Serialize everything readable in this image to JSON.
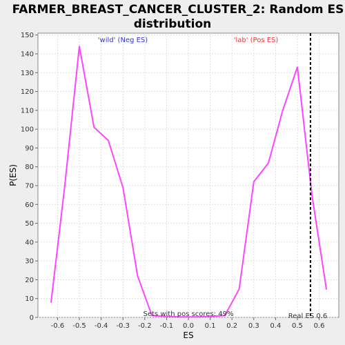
{
  "chart_data": {
    "type": "line",
    "title_line1": "FARMER_BREAST_CANCER_CLUSTER_2: Random ES",
    "title_line2": "distribution",
    "xlabel": "ES",
    "ylabel": "P(ES)",
    "xlim": [
      -0.69,
      0.69
    ],
    "ylim": [
      0,
      151
    ],
    "xticks": [
      "-0.6",
      "-0.5",
      "-0.4",
      "-0.3",
      "-0.2",
      "-0.1",
      "0.0",
      "0.1",
      "0.2",
      "0.3",
      "0.4",
      "0.5",
      "0.6"
    ],
    "yticks": [
      "0",
      "10",
      "20",
      "30",
      "40",
      "50",
      "60",
      "70",
      "80",
      "90",
      "100",
      "110",
      "120",
      "130",
      "140",
      "150"
    ],
    "grid": true,
    "line_color": "#ff44ff",
    "series": [
      {
        "x": [
          -0.63,
          -0.567,
          -0.5,
          -0.433,
          -0.367,
          -0.3,
          -0.233,
          -0.167,
          -0.1,
          -0.033,
          0.033,
          0.1,
          0.167,
          0.233,
          0.3,
          0.367,
          0.433,
          0.5,
          0.567,
          0.633
        ],
        "values": [
          8,
          70,
          144,
          101,
          94,
          69,
          22,
          1,
          0.5,
          0.3,
          0.3,
          0.5,
          1,
          15,
          72,
          82,
          110,
          133,
          65,
          15
        ]
      }
    ],
    "real_es": 0.56,
    "annotations": {
      "neg_label": "'wild' (Neg ES)",
      "neg_color": "#3333cc",
      "pos_label": "'lab' (Pos ES)",
      "pos_color": "#ee3333",
      "pos_scores": "Sets with pos scores: 49%",
      "real_es_label": "Real ES 0.6"
    }
  }
}
